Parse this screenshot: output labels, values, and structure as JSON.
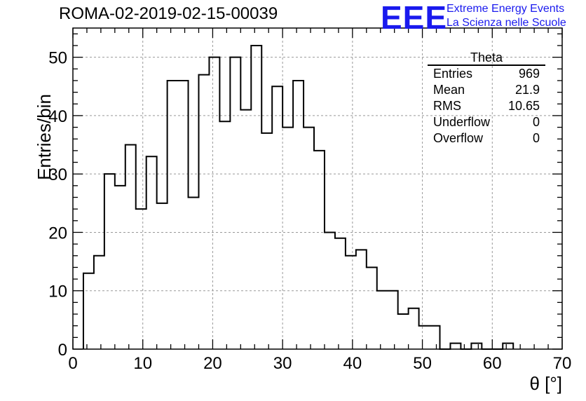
{
  "title": "ROMA-02-2019-02-15-00039",
  "logo": {
    "mark": "EEE",
    "line1": "Extreme Energy Events",
    "line2": "La Scienza nelle Scuole"
  },
  "stats": {
    "title": "Theta",
    "rows": [
      {
        "label": "Entries",
        "value": "969"
      },
      {
        "label": "Mean",
        "value": "21.9"
      },
      {
        "label": "RMS",
        "value": "10.65"
      },
      {
        "label": "Underflow",
        "value": "0"
      },
      {
        "label": "Overflow",
        "value": "0"
      }
    ]
  },
  "chart_data": {
    "type": "histogram",
    "title": "ROMA-02-2019-02-15-00039",
    "xlabel": "θ [°]",
    "ylabel": "Entries/bin",
    "xlim": [
      0,
      70
    ],
    "ylim": [
      0,
      55
    ],
    "grid": true,
    "bin_width": 1.5,
    "bin_start": 1.5,
    "values": [
      13,
      16,
      30,
      28,
      35,
      24,
      33,
      25,
      46,
      46,
      26,
      47,
      50,
      39,
      50,
      41,
      52,
      37,
      45,
      38,
      46,
      38,
      34,
      20,
      19,
      16,
      17,
      14,
      10,
      10,
      6,
      7,
      4,
      4,
      0,
      1,
      0,
      1,
      0,
      0,
      1
    ],
    "xticks": [
      0,
      10,
      20,
      30,
      40,
      50,
      60,
      70
    ],
    "yticks": [
      0,
      10,
      20,
      30,
      40,
      50
    ],
    "colors": {
      "line": "#000000",
      "grid": "#999999",
      "logo": "#1a1aee"
    }
  }
}
